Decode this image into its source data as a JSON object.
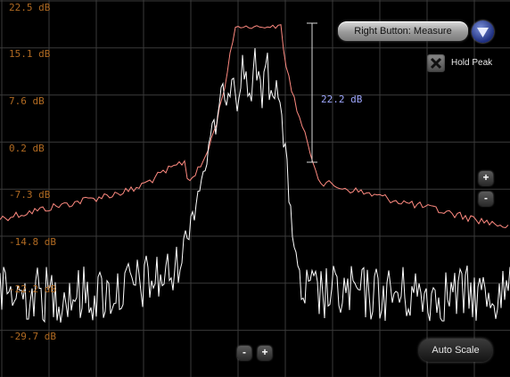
{
  "db_labels": [
    "22.5 dB",
    "15.1 dB",
    "7.6 dB",
    "0.2 dB",
    "-7.3 dB",
    "-14.8 dB",
    "-22.2 dB",
    "-29.7 dB"
  ],
  "measurement": {
    "value": "22.2 dB"
  },
  "right_button_mode": {
    "label": "Right Button: Measure"
  },
  "hold_peak": {
    "label": "Hold Peak",
    "checked": true
  },
  "vertical_zoom": {
    "plus": "+",
    "minus": "-"
  },
  "horizontal_zoom": {
    "minus": "-",
    "plus": "+"
  },
  "auto_scale": {
    "label": "Auto Scale"
  },
  "colors": {
    "peak_trace": "#ff8a80",
    "live_trace": "#ffffff",
    "db_label": "#b06a22",
    "measure": "#9fa8ff",
    "grid": "#3a3a3a"
  }
}
